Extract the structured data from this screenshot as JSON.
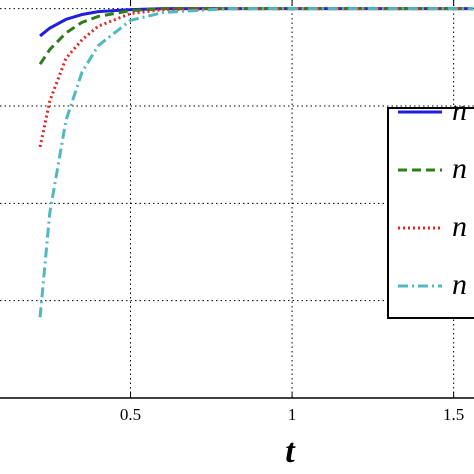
{
  "chart_data": {
    "type": "line",
    "x_label": "t",
    "x": [
      0.22,
      0.25,
      0.3,
      0.35,
      0.4,
      0.5,
      0.6,
      0.8,
      1,
      1.2,
      1.4,
      1.56
    ],
    "series": [
      {
        "name": "n",
        "color": "#1f1fe0",
        "dash": "solid",
        "values": [
          3.72,
          3.8,
          3.89,
          3.94,
          3.97,
          3.99,
          4,
          4,
          4,
          4,
          4,
          4
        ]
      },
      {
        "name": "n",
        "color": "#2e7d1a",
        "dash": "dashed",
        "values": [
          3.43,
          3.58,
          3.75,
          3.86,
          3.92,
          3.98,
          4,
          4,
          4,
          4,
          4,
          4
        ]
      },
      {
        "name": "n",
        "color": "#e0261f",
        "dash": "dotted",
        "values": [
          2.58,
          3.05,
          3.49,
          3.68,
          3.82,
          3.95,
          3.99,
          4,
          4,
          4,
          4,
          4
        ]
      },
      {
        "name": "n",
        "color": "#4fb8c0",
        "dash": "dashdot",
        "values": [
          0.83,
          1.9,
          2.85,
          3.35,
          3.62,
          3.88,
          3.96,
          4,
          4,
          4,
          4,
          4
        ]
      }
    ],
    "xlim": [
      0.096,
      1.563
    ],
    "ylim": [
      0,
      4.5
    ],
    "xticks": [
      0.5,
      1,
      1.5
    ],
    "yticks": [
      1,
      2,
      3,
      4
    ],
    "grid": true
  }
}
